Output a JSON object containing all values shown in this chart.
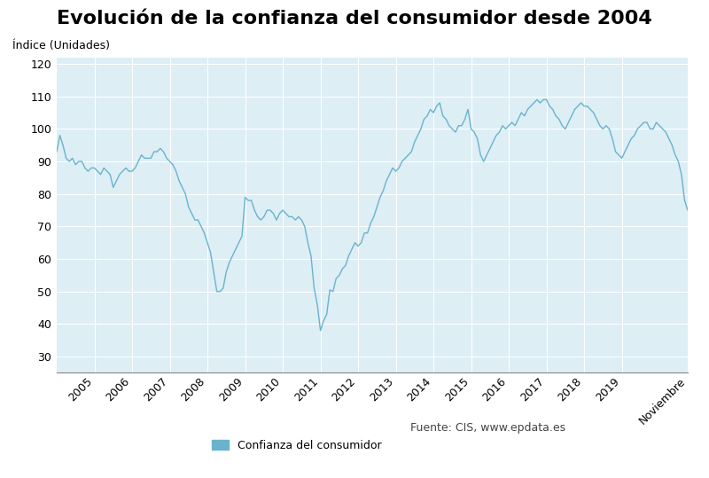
{
  "title": "Evolución de la confianza del consumidor desde 2004",
  "ylabel": "Índice (Unidades)",
  "ylim": [
    25,
    122
  ],
  "yticks": [
    30,
    40,
    50,
    60,
    70,
    80,
    90,
    100,
    110,
    120
  ],
  "line_color": "#6ab3cc",
  "bg_color": "#ddeef5",
  "grid_color": "#ffffff",
  "legend_label": "Confianza del consumidor",
  "source_text": "Fuente: CIS, www.epdata.es",
  "values": [
    93.0,
    98.0,
    95.0,
    91.0,
    90.0,
    91.0,
    89.0,
    90.0,
    90.0,
    88.0,
    87.0,
    88.0,
    88.0,
    87.0,
    86.0,
    88.0,
    87.0,
    86.0,
    82.0,
    84.0,
    86.0,
    87.0,
    88.0,
    87.0,
    87.0,
    88.0,
    90.0,
    92.0,
    91.0,
    91.0,
    91.0,
    93.0,
    93.0,
    94.0,
    93.0,
    91.0,
    90.0,
    89.0,
    87.0,
    84.0,
    82.0,
    80.0,
    76.0,
    74.0,
    72.0,
    72.0,
    70.0,
    68.0,
    65.0,
    62.0,
    56.0,
    50.0,
    50.0,
    51.0,
    56.0,
    59.0,
    61.0,
    63.0,
    65.0,
    67.0,
    79.0,
    78.0,
    78.0,
    75.0,
    73.0,
    72.0,
    73.0,
    75.0,
    75.0,
    74.0,
    72.0,
    74.0,
    75.0,
    74.0,
    73.0,
    73.0,
    72.0,
    73.0,
    72.0,
    70.0,
    65.0,
    61.0,
    51.0,
    46.0,
    38.0,
    41.0,
    43.0,
    50.5,
    50.0,
    54.0,
    55.0,
    57.0,
    58.0,
    61.0,
    63.0,
    65.0,
    64.0,
    65.0,
    68.0,
    68.0,
    71.0,
    73.0,
    76.0,
    79.0,
    81.0,
    84.0,
    86.0,
    88.0,
    87.0,
    88.0,
    90.0,
    91.0,
    92.0,
    93.0,
    96.0,
    98.0,
    100.0,
    103.0,
    104.0,
    106.0,
    105.0,
    107.0,
    108.0,
    104.0,
    103.0,
    101.0,
    100.0,
    99.0,
    101.0,
    101.0,
    103.0,
    106.0,
    100.0,
    99.0,
    97.0,
    92.0,
    90.0,
    92.0,
    94.0,
    96.0,
    98.0,
    99.0,
    101.0,
    100.0,
    101.0,
    102.0,
    101.0,
    103.0,
    105.0,
    104.0,
    106.0,
    107.0,
    108.0,
    109.0,
    108.0,
    109.0,
    109.0,
    107.0,
    106.0,
    104.0,
    103.0,
    101.0,
    100.0,
    102.0,
    104.0,
    106.0,
    107.0,
    108.0,
    107.0,
    107.0,
    106.0,
    105.0,
    103.0,
    101.0,
    100.0,
    101.0,
    100.0,
    97.0,
    93.0,
    92.0,
    91.0,
    93.0,
    95.0,
    97.0,
    98.0,
    100.0,
    101.0,
    102.0,
    102.0,
    100.0,
    100.0,
    102.0,
    101.0,
    100.0,
    99.0,
    97.0,
    95.0,
    92.0,
    90.0,
    86.0,
    78.0,
    75.0
  ],
  "start_year": 2004,
  "start_month": 1
}
